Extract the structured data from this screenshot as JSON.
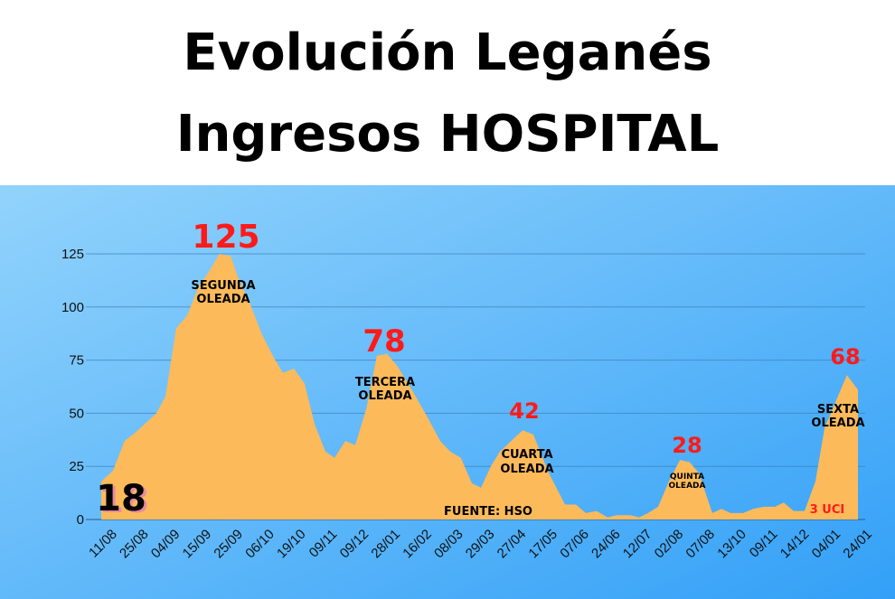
{
  "title": {
    "line1": "Evolución Leganés",
    "line2": "Ingresos HOSPITAL"
  },
  "colors": {
    "area": "#fdba5a",
    "peak": "#ff1a1a",
    "grid": "#3d7fb8",
    "bg_light": "#8fd2fc",
    "bg_dark": "#36a0f6"
  },
  "chart_data": {
    "type": "area",
    "title": "Evolución Leganés Ingresos HOSPITAL",
    "xlabel": "",
    "ylabel": "",
    "ylim": [
      0,
      125
    ],
    "yticks": [
      "0",
      "25",
      "50",
      "75",
      "100",
      "125"
    ],
    "grid": true,
    "categories": [
      "11/08",
      "25/08",
      "04/09",
      "15/09",
      "25/09",
      "06/10",
      "19/10",
      "09/11",
      "09/12",
      "28/01",
      "16/02",
      "08/03",
      "29/03",
      "27/04",
      "17/05",
      "07/06",
      "24/06",
      "12/07",
      "02/08",
      "07/08",
      "13/10",
      "09/11",
      "14/12",
      "04/01",
      "24/01"
    ],
    "points": [
      [
        -0.17,
        18
      ],
      [
        0.2,
        23
      ],
      [
        0.57,
        37
      ],
      [
        0.92,
        41
      ],
      [
        1.58,
        50
      ],
      [
        1.87,
        58
      ],
      [
        2.21,
        90
      ],
      [
        2.56,
        96
      ],
      [
        2.93,
        110
      ],
      [
        3.22,
        116
      ],
      [
        3.59,
        125
      ],
      [
        3.94,
        124
      ],
      [
        4.17,
        114
      ],
      [
        4.57,
        101
      ],
      [
        4.94,
        87
      ],
      [
        5.32,
        76
      ],
      [
        5.6,
        69
      ],
      [
        5.95,
        71
      ],
      [
        6.29,
        64
      ],
      [
        6.61,
        45
      ],
      [
        6.95,
        32
      ],
      [
        7.24,
        29
      ],
      [
        7.59,
        37
      ],
      [
        7.9,
        35
      ],
      [
        8.25,
        52
      ],
      [
        8.59,
        77
      ],
      [
        8.91,
        78
      ],
      [
        9.25,
        72
      ],
      [
        9.74,
        60
      ],
      [
        10.2,
        48
      ],
      [
        10.6,
        37
      ],
      [
        10.92,
        32
      ],
      [
        11.26,
        29
      ],
      [
        11.61,
        17
      ],
      [
        11.9,
        15
      ],
      [
        12.21,
        25
      ],
      [
        12.5,
        32
      ],
      [
        13.22,
        42
      ],
      [
        13.56,
        40
      ],
      [
        14.05,
        22
      ],
      [
        14.57,
        7
      ],
      [
        14.91,
        7
      ],
      [
        15.23,
        3
      ],
      [
        15.57,
        4
      ],
      [
        15.92,
        1
      ],
      [
        16.21,
        2
      ],
      [
        16.64,
        2
      ],
      [
        16.93,
        1
      ],
      [
        17.21,
        3
      ],
      [
        17.53,
        6
      ],
      [
        17.87,
        18
      ],
      [
        18.22,
        28
      ],
      [
        18.53,
        27
      ],
      [
        18.82,
        22
      ],
      [
        19.25,
        3
      ],
      [
        19.54,
        5
      ],
      [
        19.83,
        3
      ],
      [
        20.23,
        3
      ],
      [
        20.55,
        5
      ],
      [
        20.89,
        6
      ],
      [
        21.24,
        6
      ],
      [
        21.52,
        8
      ],
      [
        21.84,
        4
      ],
      [
        22.18,
        4
      ],
      [
        22.53,
        18
      ],
      [
        22.82,
        43
      ],
      [
        23.13,
        54
      ],
      [
        23.53,
        68
      ],
      [
        23.88,
        61
      ]
    ],
    "annotations": {
      "start_value": "18",
      "peak2_value": "125",
      "peak2_label1": "SEGUNDA",
      "peak2_label2": "OLEADA",
      "peak3_value": "78",
      "peak3_label1": "TERCERA",
      "peak3_label2": "OLEADA",
      "peak4_value": "42",
      "peak4_label1": "CUARTA",
      "peak4_label2": "OLEADA",
      "peak5_value": "28",
      "peak5_label1": "QUINTA",
      "peak5_label2": "OLEADA",
      "peak6_value": "68",
      "peak6_label1": "SEXTA",
      "peak6_label2": "OLEADA",
      "source": "FUENTE: HSO",
      "icu": "3 UCI"
    }
  }
}
